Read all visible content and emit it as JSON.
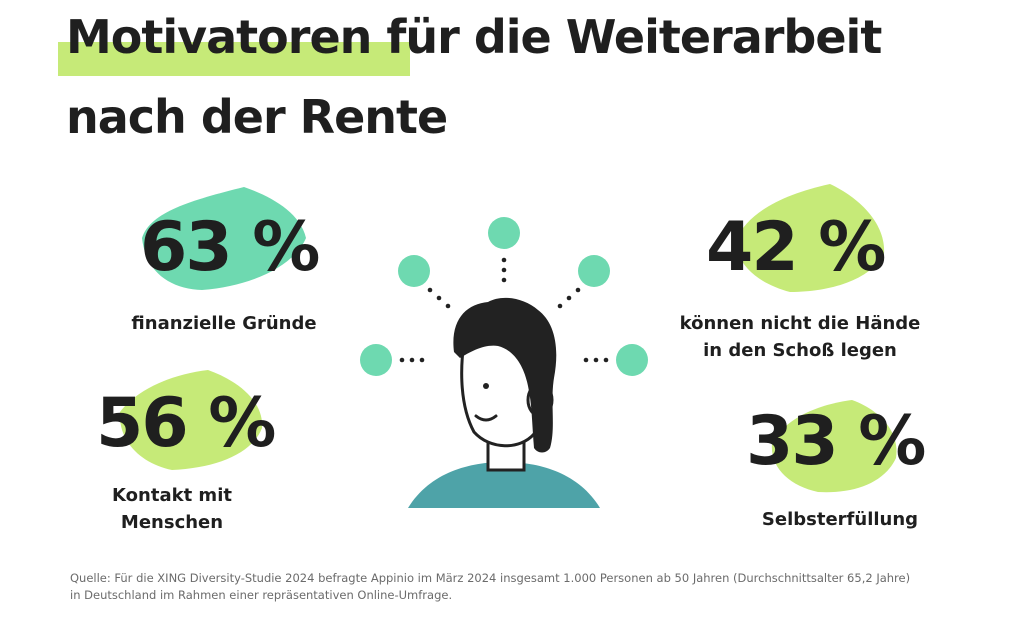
{
  "title_line1": "Motivatoren für die Weiterarbeit",
  "title_line2": "nach der Rente",
  "colors": {
    "green_highlight": "#c6ea78",
    "mint": "#6ed9b0",
    "teal": "#4ea3a8",
    "hair": "#222222",
    "text": "#1f1f1f",
    "source_text": "#6b6b6b"
  },
  "illustration_icon": "thinking-person-icon",
  "chart_data": {
    "type": "other",
    "unit": "%",
    "stats": [
      {
        "value": 63,
        "display": "63 %",
        "label": "finanzielle Gründe",
        "color": "#6ed9b0"
      },
      {
        "value": 56,
        "display": "56 %",
        "label": "Kontakt mit\nMenschen",
        "color": "#c6ea78"
      },
      {
        "value": 42,
        "display": "42 %",
        "label": "können nicht die Hände\nin den Schoß legen",
        "color": "#c6ea78"
      },
      {
        "value": 33,
        "display": "33 %",
        "label": "Selbsterfüllung",
        "color": "#c6ea78"
      }
    ]
  },
  "source": "Quelle: Für die XING Diversity-Studie 2024 befragte Appinio im März 2024 insgesamt 1.000 Personen ab 50 Jahren (Durchschnittsalter 65,2 Jahre)\nin Deutschland im Rahmen einer repräsentativen Online-Umfrage."
}
